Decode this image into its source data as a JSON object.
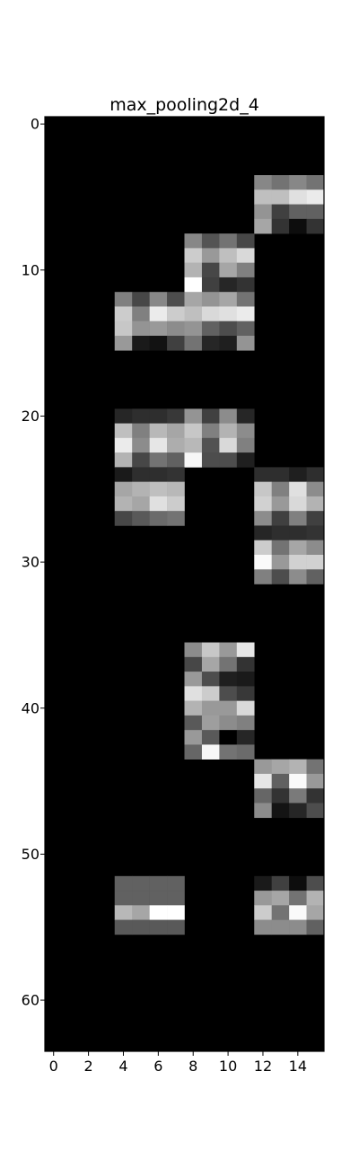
{
  "figure": {
    "background": "#ffffff",
    "colormap": "gray"
  },
  "chart_data": {
    "type": "heatmap",
    "title": "max_pooling2d_4",
    "xlabel": "",
    "ylabel": "",
    "n_cols": 16,
    "n_rows": 64,
    "xlim": [
      -0.5,
      15.5
    ],
    "ylim": [
      63.5,
      -0.5
    ],
    "x_ticks": [
      0,
      2,
      4,
      6,
      8,
      10,
      12,
      14
    ],
    "y_ticks": [
      0,
      10,
      20,
      30,
      40,
      50,
      60
    ],
    "x_tick_labels": [
      "0",
      "2",
      "4",
      "6",
      "8",
      "10",
      "12",
      "14"
    ],
    "y_tick_labels": [
      "0",
      "10",
      "20",
      "30",
      "40",
      "50",
      "60"
    ],
    "grid": false,
    "colorbar": false,
    "value_range": [
      0,
      1
    ],
    "background_value": 0,
    "blocks": [
      {
        "row": 4,
        "col": 12,
        "values": [
          [
            0.53,
            0.45,
            0.53,
            0.45
          ],
          [
            0.75,
            0.75,
            0.88,
            0.92
          ],
          [
            0.58,
            0.25,
            0.38,
            0.38
          ],
          [
            0.65,
            0.2,
            0.05,
            0.2
          ]
        ]
      },
      {
        "row": 8,
        "col": 8,
        "values": [
          [
            0.53,
            0.33,
            0.45,
            0.28
          ],
          [
            0.8,
            0.6,
            0.75,
            0.85
          ],
          [
            0.7,
            0.28,
            0.65,
            0.5
          ],
          [
            1.0,
            0.25,
            0.15,
            0.2
          ]
        ]
      },
      {
        "row": 12,
        "col": 4,
        "values": [
          [
            0.5,
            0.28,
            0.53,
            0.3
          ],
          [
            0.8,
            0.5,
            0.92,
            0.8
          ],
          [
            0.78,
            0.58,
            0.6,
            0.55
          ],
          [
            0.6,
            0.1,
            0.07,
            0.25
          ]
        ]
      },
      {
        "row": 12,
        "col": 8,
        "values": [
          [
            0.65,
            0.58,
            0.65,
            0.45
          ],
          [
            0.75,
            0.85,
            0.88,
            0.92
          ],
          [
            0.58,
            0.38,
            0.3,
            0.38
          ],
          [
            0.45,
            0.15,
            0.12,
            0.58
          ]
        ]
      },
      {
        "row": 20,
        "col": 4,
        "values": [
          [
            0.15,
            0.18,
            0.18,
            0.22
          ],
          [
            0.75,
            0.5,
            0.72,
            0.65
          ],
          [
            0.92,
            0.55,
            0.9,
            0.68
          ],
          [
            0.7,
            0.28,
            0.45,
            0.38
          ]
        ]
      },
      {
        "row": 20,
        "col": 8,
        "values": [
          [
            0.58,
            0.25,
            0.55,
            0.15
          ],
          [
            0.78,
            0.5,
            0.7,
            0.55
          ],
          [
            0.72,
            0.32,
            0.85,
            0.5
          ],
          [
            0.97,
            0.3,
            0.3,
            0.12
          ]
        ]
      },
      {
        "row": 24,
        "col": 4,
        "values": [
          [
            0.1,
            0.18,
            0.18,
            0.2
          ],
          [
            0.65,
            0.7,
            0.75,
            0.72
          ],
          [
            0.7,
            0.65,
            0.88,
            0.8
          ],
          [
            0.28,
            0.35,
            0.42,
            0.45
          ]
        ]
      },
      {
        "row": 24,
        "col": 12,
        "values": [
          [
            0.18,
            0.18,
            0.12,
            0.18
          ],
          [
            0.78,
            0.5,
            0.88,
            0.55
          ],
          [
            0.82,
            0.6,
            0.85,
            0.7
          ],
          [
            0.55,
            0.25,
            0.5,
            0.25
          ]
        ]
      },
      {
        "row": 28,
        "col": 12,
        "values": [
          [
            0.15,
            0.18,
            0.18,
            0.2
          ],
          [
            0.8,
            0.45,
            0.65,
            0.55
          ],
          [
            0.98,
            0.6,
            0.82,
            0.82
          ],
          [
            0.5,
            0.3,
            0.55,
            0.38
          ]
        ]
      },
      {
        "row": 36,
        "col": 8,
        "values": [
          [
            0.55,
            0.78,
            0.6,
            0.9
          ],
          [
            0.28,
            0.65,
            0.45,
            0.2
          ],
          [
            0.6,
            0.3,
            0.12,
            0.1
          ],
          [
            0.88,
            0.8,
            0.3,
            0.22
          ]
        ]
      },
      {
        "row": 40,
        "col": 8,
        "values": [
          [
            0.7,
            0.6,
            0.6,
            0.85
          ],
          [
            0.35,
            0.62,
            0.55,
            0.5
          ],
          [
            0.6,
            0.35,
            0.0,
            0.15
          ],
          [
            0.4,
            0.97,
            0.45,
            0.42
          ]
        ]
      },
      {
        "row": 44,
        "col": 12,
        "values": [
          [
            0.6,
            0.65,
            0.7,
            0.45
          ],
          [
            0.9,
            0.38,
            0.98,
            0.6
          ],
          [
            0.4,
            0.2,
            0.48,
            0.2
          ],
          [
            0.55,
            0.08,
            0.15,
            0.3
          ]
        ]
      },
      {
        "row": 52,
        "col": 4,
        "values": [
          [
            0.38,
            0.38,
            0.38,
            0.38
          ],
          [
            0.38,
            0.38,
            0.38,
            0.38
          ],
          [
            0.72,
            0.65,
            1.0,
            1.0
          ],
          [
            0.35,
            0.35,
            0.35,
            0.35
          ]
        ]
      },
      {
        "row": 52,
        "col": 12,
        "values": [
          [
            0.1,
            0.25,
            0.05,
            0.3
          ],
          [
            0.6,
            0.65,
            0.45,
            0.7
          ],
          [
            0.8,
            0.45,
            0.98,
            0.65
          ],
          [
            0.55,
            0.55,
            0.55,
            0.38
          ]
        ]
      }
    ]
  }
}
